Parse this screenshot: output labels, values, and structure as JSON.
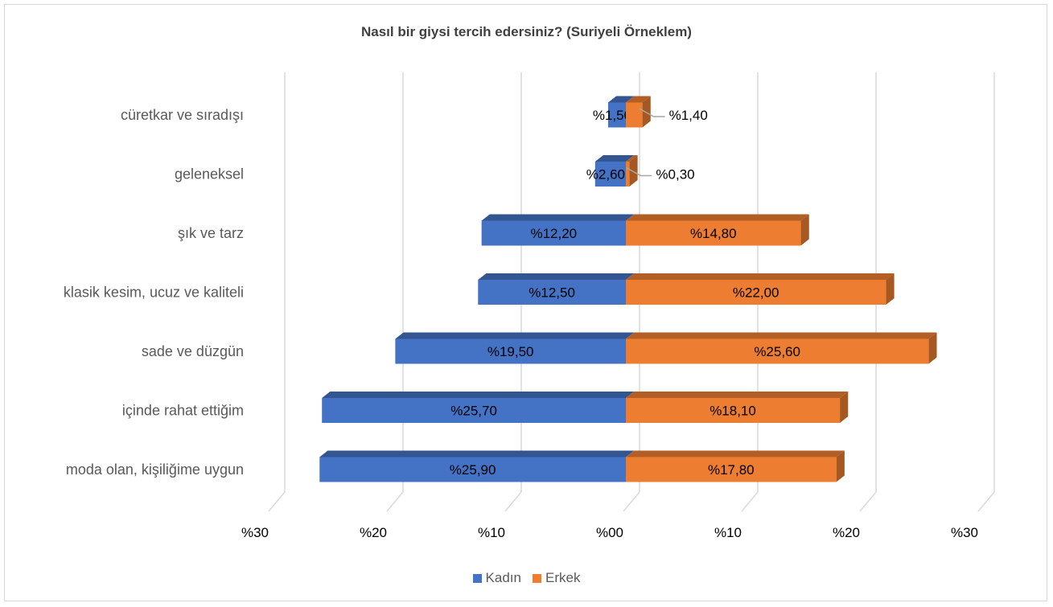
{
  "chart_data": {
    "type": "bar",
    "orientation": "horizontal",
    "title": "Nasıl bir giysi tercih edersiniz? (Suriyeli Örneklem)",
    "categories": [
      "cüretkar ve sıradışı",
      "geleneksel",
      "şık ve tarz",
      "klasik kesim, ucuz ve kaliteli",
      "sade ve düzgün",
      "içinde rahat ettiğim",
      "moda olan, kişiliğime uygun"
    ],
    "series": [
      {
        "name": "Kadın",
        "color": "#4472C4",
        "side": "left",
        "values": [
          1.5,
          2.6,
          12.2,
          12.5,
          19.5,
          25.7,
          25.9
        ],
        "labels": [
          "%1,50",
          "%2,60",
          "%12,20",
          "%12,50",
          "%19,50",
          "%25,70",
          "%25,90"
        ]
      },
      {
        "name": "Erkek",
        "color": "#ED7D31",
        "side": "right",
        "values": [
          1.4,
          0.3,
          14.8,
          22.0,
          25.6,
          18.1,
          17.8
        ],
        "labels": [
          "%1,40",
          "%0,30",
          "%14,80",
          "%22,00",
          "%25,60",
          "%18,10",
          "%17,80"
        ]
      }
    ],
    "x_ticks": [
      "%30",
      "%20",
      "%10",
      "%00",
      "%10",
      "%20",
      "%30"
    ],
    "xlim": [
      -30,
      30
    ],
    "grid": true,
    "legend_position": "bottom"
  }
}
